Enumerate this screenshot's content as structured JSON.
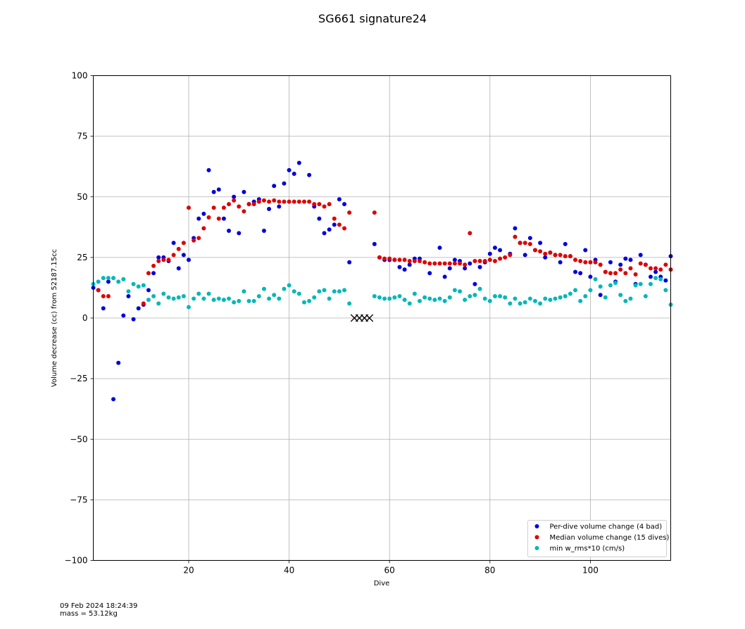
{
  "chart_data": {
    "type": "scatter",
    "title": "SG661 signature24",
    "xlabel": "Dive",
    "ylabel": "Volume decrease (cc) from 52187.15cc",
    "xlim": [
      1,
      116
    ],
    "ylim": [
      -100,
      100
    ],
    "xticks": [
      20,
      40,
      60,
      80,
      100
    ],
    "yticks": [
      -100,
      -75,
      -50,
      -25,
      0,
      25,
      50,
      75,
      100
    ],
    "grid": true,
    "legend_position": "lower-right",
    "series": [
      {
        "name": "Per-dive volume change (4 bad)",
        "color": "#0000dd",
        "marker": "circle",
        "points": [
          [
            1,
            12.5
          ],
          [
            2,
            11.5
          ],
          [
            3,
            4
          ],
          [
            4,
            15
          ],
          [
            5,
            -33.5
          ],
          [
            6,
            -18.5
          ],
          [
            7,
            1
          ],
          [
            8,
            9
          ],
          [
            9,
            -0.5
          ],
          [
            10,
            4
          ],
          [
            11,
            5.5
          ],
          [
            12,
            11.5
          ],
          [
            13,
            18.5
          ],
          [
            14,
            25
          ],
          [
            15,
            25
          ],
          [
            16,
            23.5
          ],
          [
            17,
            31
          ],
          [
            18,
            20.5
          ],
          [
            19,
            26
          ],
          [
            20,
            24
          ],
          [
            21,
            33
          ],
          [
            22,
            41
          ],
          [
            23,
            43
          ],
          [
            24,
            61
          ],
          [
            25,
            52
          ],
          [
            26,
            53
          ],
          [
            27,
            41
          ],
          [
            28,
            36
          ],
          [
            29,
            50
          ],
          [
            30,
            35
          ],
          [
            31,
            52
          ],
          [
            32,
            47
          ],
          [
            33,
            48
          ],
          [
            34,
            49
          ],
          [
            35,
            36
          ],
          [
            36,
            45
          ],
          [
            37,
            54.5
          ],
          [
            38,
            46
          ],
          [
            39,
            55.5
          ],
          [
            40,
            61
          ],
          [
            41,
            59.5
          ],
          [
            42,
            64
          ],
          [
            44,
            59
          ],
          [
            45,
            46
          ],
          [
            46,
            41
          ],
          [
            47,
            35
          ],
          [
            48,
            36.5
          ],
          [
            49,
            38.5
          ],
          [
            50,
            49
          ],
          [
            51,
            47
          ],
          [
            52,
            23
          ],
          [
            57,
            30.5
          ],
          [
            58,
            25
          ],
          [
            59,
            24
          ],
          [
            60,
            24
          ],
          [
            61,
            24
          ],
          [
            62,
            21
          ],
          [
            63,
            20
          ],
          [
            64,
            22
          ],
          [
            65,
            24.5
          ],
          [
            66,
            24.5
          ],
          [
            68,
            18.5
          ],
          [
            70,
            29
          ],
          [
            71,
            17
          ],
          [
            72,
            20.5
          ],
          [
            73,
            24
          ],
          [
            74,
            23.5
          ],
          [
            75,
            20.5
          ],
          [
            76,
            22.5
          ],
          [
            77,
            14
          ],
          [
            78,
            21
          ],
          [
            79,
            23
          ],
          [
            80,
            26.5
          ],
          [
            81,
            29
          ],
          [
            82,
            28
          ],
          [
            84,
            26.5
          ],
          [
            85,
            37
          ],
          [
            86,
            31
          ],
          [
            87,
            26
          ],
          [
            88,
            33
          ],
          [
            89,
            28
          ],
          [
            90,
            31
          ],
          [
            91,
            25
          ],
          [
            92,
            27
          ],
          [
            93,
            26
          ],
          [
            94,
            23
          ],
          [
            95,
            30.5
          ],
          [
            96,
            25.5
          ],
          [
            97,
            19
          ],
          [
            98,
            18.5
          ],
          [
            99,
            28
          ],
          [
            100,
            17
          ],
          [
            101,
            24
          ],
          [
            102,
            9.5
          ],
          [
            103,
            19
          ],
          [
            104,
            23
          ],
          [
            105,
            15
          ],
          [
            106,
            22
          ],
          [
            107,
            24.5
          ],
          [
            108,
            24
          ],
          [
            109,
            14
          ],
          [
            110,
            26
          ],
          [
            111,
            22
          ],
          [
            112,
            17
          ],
          [
            113,
            19
          ],
          [
            114,
            17
          ],
          [
            115,
            15.5
          ],
          [
            116,
            25.5
          ]
        ]
      },
      {
        "name": "Median volume change (15 dives)",
        "color": "#dd0000",
        "marker": "circle",
        "points": [
          [
            2,
            11.5
          ],
          [
            3,
            9
          ],
          [
            4,
            9
          ],
          [
            11,
            6
          ],
          [
            12,
            18.5
          ],
          [
            13,
            21.5
          ],
          [
            14,
            23.5
          ],
          [
            15,
            24
          ],
          [
            16,
            24
          ],
          [
            17,
            26
          ],
          [
            18,
            28.5
          ],
          [
            19,
            31
          ],
          [
            20,
            45.5
          ],
          [
            21,
            32
          ],
          [
            22,
            33
          ],
          [
            23,
            37
          ],
          [
            24,
            41.5
          ],
          [
            25,
            45.5
          ],
          [
            26,
            41
          ],
          [
            27,
            45.5
          ],
          [
            28,
            47
          ],
          [
            29,
            48.5
          ],
          [
            30,
            46
          ],
          [
            31,
            44
          ],
          [
            32,
            47
          ],
          [
            33,
            47
          ],
          [
            34,
            48
          ],
          [
            35,
            48.5
          ],
          [
            36,
            48
          ],
          [
            37,
            48.5
          ],
          [
            38,
            48
          ],
          [
            39,
            48
          ],
          [
            40,
            48
          ],
          [
            41,
            48
          ],
          [
            42,
            48
          ],
          [
            43,
            48
          ],
          [
            44,
            48
          ],
          [
            45,
            47
          ],
          [
            46,
            47
          ],
          [
            47,
            46
          ],
          [
            48,
            47
          ],
          [
            49,
            41
          ],
          [
            50,
            38.5
          ],
          [
            51,
            37
          ],
          [
            52,
            43.5
          ],
          [
            57,
            43.5
          ],
          [
            58,
            25
          ],
          [
            59,
            24.5
          ],
          [
            60,
            24.5
          ],
          [
            61,
            24
          ],
          [
            62,
            24
          ],
          [
            63,
            24
          ],
          [
            64,
            23.5
          ],
          [
            65,
            23.5
          ],
          [
            66,
            23.5
          ],
          [
            67,
            23
          ],
          [
            68,
            22.5
          ],
          [
            69,
            22.5
          ],
          [
            70,
            22.5
          ],
          [
            71,
            22.5
          ],
          [
            72,
            22.5
          ],
          [
            73,
            22.5
          ],
          [
            74,
            22.5
          ],
          [
            75,
            22
          ],
          [
            76,
            35
          ],
          [
            77,
            23.5
          ],
          [
            78,
            23.5
          ],
          [
            79,
            23.5
          ],
          [
            80,
            24
          ],
          [
            81,
            23.5
          ],
          [
            82,
            24.5
          ],
          [
            83,
            25
          ],
          [
            84,
            26
          ],
          [
            85,
            33.5
          ],
          [
            86,
            31
          ],
          [
            87,
            31
          ],
          [
            88,
            30.5
          ],
          [
            89,
            28
          ],
          [
            90,
            27.5
          ],
          [
            91,
            26.5
          ],
          [
            92,
            27
          ],
          [
            93,
            26
          ],
          [
            94,
            26
          ],
          [
            95,
            25.5
          ],
          [
            96,
            25.5
          ],
          [
            97,
            24
          ],
          [
            98,
            23.5
          ],
          [
            99,
            23
          ],
          [
            100,
            23
          ],
          [
            101,
            23
          ],
          [
            102,
            22
          ],
          [
            103,
            19
          ],
          [
            104,
            18.5
          ],
          [
            105,
            18.5
          ],
          [
            106,
            20
          ],
          [
            107,
            18.5
          ],
          [
            108,
            20.5
          ],
          [
            109,
            18
          ],
          [
            110,
            22.5
          ],
          [
            111,
            22
          ],
          [
            112,
            20.5
          ],
          [
            113,
            20.5
          ],
          [
            114,
            20
          ],
          [
            115,
            22
          ],
          [
            116,
            20
          ]
        ]
      },
      {
        "name": "min w_rms*10 (cm/s)",
        "color": "#00b8b8",
        "marker": "circle",
        "points": [
          [
            1,
            14
          ],
          [
            2,
            15
          ],
          [
            3,
            16.5
          ],
          [
            4,
            16.5
          ],
          [
            5,
            16.5
          ],
          [
            6,
            15
          ],
          [
            7,
            16
          ],
          [
            8,
            11
          ],
          [
            9,
            14
          ],
          [
            10,
            13
          ],
          [
            11,
            13.5
          ],
          [
            12,
            7.5
          ],
          [
            13,
            9
          ],
          [
            14,
            6
          ],
          [
            15,
            10
          ],
          [
            16,
            8.5
          ],
          [
            17,
            8
          ],
          [
            18,
            8.5
          ],
          [
            19,
            9
          ],
          [
            20,
            4.5
          ],
          [
            21,
            8
          ],
          [
            22,
            10
          ],
          [
            23,
            8
          ],
          [
            24,
            10
          ],
          [
            25,
            7.5
          ],
          [
            26,
            8
          ],
          [
            27,
            7.5
          ],
          [
            28,
            8
          ],
          [
            29,
            6.5
          ],
          [
            30,
            7
          ],
          [
            31,
            11
          ],
          [
            32,
            7
          ],
          [
            33,
            7
          ],
          [
            34,
            9
          ],
          [
            35,
            12
          ],
          [
            36,
            8
          ],
          [
            37,
            9.5
          ],
          [
            38,
            8
          ],
          [
            39,
            12
          ],
          [
            40,
            13.5
          ],
          [
            41,
            11
          ],
          [
            42,
            10
          ],
          [
            43,
            6.5
          ],
          [
            44,
            7
          ],
          [
            45,
            8.5
          ],
          [
            46,
            11
          ],
          [
            47,
            11.5
          ],
          [
            48,
            8
          ],
          [
            49,
            11
          ],
          [
            50,
            11
          ],
          [
            51,
            11.5
          ],
          [
            52,
            6
          ],
          [
            57,
            9
          ],
          [
            58,
            8.5
          ],
          [
            59,
            8
          ],
          [
            60,
            8
          ],
          [
            61,
            8.5
          ],
          [
            62,
            9
          ],
          [
            63,
            7.5
          ],
          [
            64,
            6
          ],
          [
            65,
            10
          ],
          [
            66,
            7
          ],
          [
            67,
            8.5
          ],
          [
            68,
            8
          ],
          [
            69,
            7.5
          ],
          [
            70,
            8
          ],
          [
            71,
            7
          ],
          [
            72,
            8.5
          ],
          [
            73,
            11.5
          ],
          [
            74,
            11
          ],
          [
            75,
            7.5
          ],
          [
            76,
            9
          ],
          [
            77,
            9.5
          ],
          [
            78,
            12
          ],
          [
            79,
            8
          ],
          [
            80,
            7
          ],
          [
            81,
            9
          ],
          [
            82,
            9
          ],
          [
            83,
            8.5
          ],
          [
            84,
            6
          ],
          [
            85,
            8
          ],
          [
            86,
            6
          ],
          [
            87,
            6.5
          ],
          [
            88,
            8
          ],
          [
            89,
            7
          ],
          [
            90,
            6
          ],
          [
            91,
            8
          ],
          [
            92,
            7.5
          ],
          [
            93,
            8
          ],
          [
            94,
            8.5
          ],
          [
            95,
            9
          ],
          [
            96,
            10
          ],
          [
            97,
            11.5
          ],
          [
            98,
            7
          ],
          [
            99,
            9
          ],
          [
            100,
            11.5
          ],
          [
            101,
            16
          ],
          [
            102,
            13
          ],
          [
            103,
            8.5
          ],
          [
            104,
            13.5
          ],
          [
            105,
            14.5
          ],
          [
            106,
            9.5
          ],
          [
            107,
            7
          ],
          [
            108,
            8
          ],
          [
            109,
            13.5
          ],
          [
            110,
            14
          ],
          [
            111,
            9
          ],
          [
            112,
            14
          ],
          [
            113,
            16.5
          ],
          [
            114,
            16
          ],
          [
            115,
            11.5
          ],
          [
            116,
            5.5
          ]
        ]
      },
      {
        "name": "",
        "color": "#000000",
        "marker": "x",
        "points": [
          [
            53,
            0
          ],
          [
            54,
            0
          ],
          [
            55,
            0
          ],
          [
            56,
            0
          ]
        ]
      }
    ]
  },
  "footer": {
    "timestamp": "09 Feb 2024 18:24:39",
    "mass": "mass = 53.12kg"
  }
}
